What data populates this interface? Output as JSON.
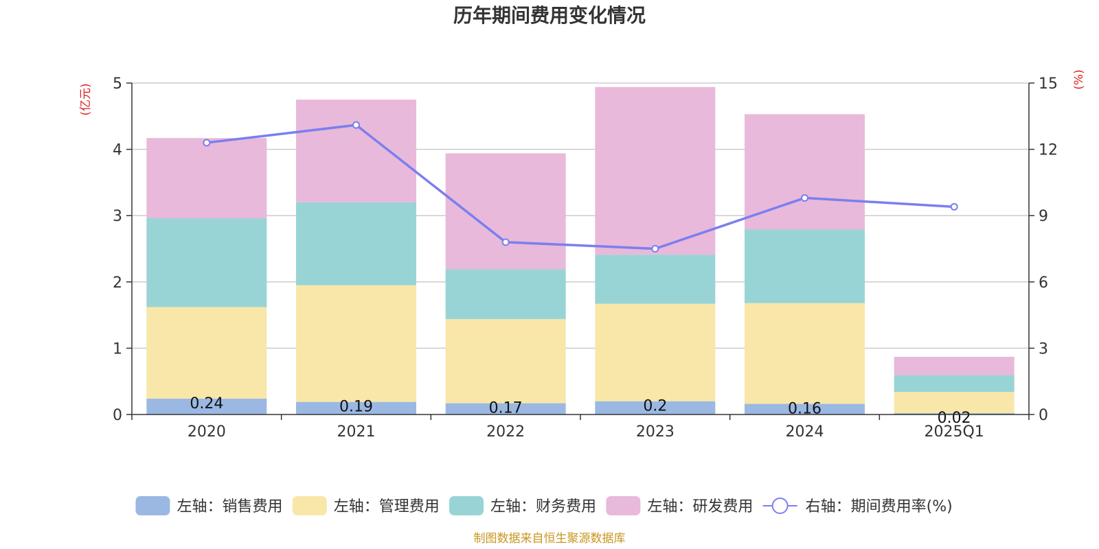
{
  "chart_data": {
    "type": "bar",
    "title": "历年期间费用变化情况",
    "categories": [
      "2020",
      "2021",
      "2022",
      "2023",
      "2024",
      "2025Q1"
    ],
    "left_axis": {
      "unit": "(亿元)",
      "ylim": [
        0,
        5
      ],
      "ticks": [
        "0",
        "1",
        "2",
        "3",
        "4",
        "5"
      ]
    },
    "right_axis": {
      "unit": "(%)",
      "ylim": [
        0,
        15
      ],
      "ticks": [
        "0",
        "3",
        "6",
        "9",
        "12",
        "15"
      ]
    },
    "series": [
      {
        "name": "左轴：销售费用",
        "type": "bar",
        "axis": "left",
        "color": "#9bb8e3",
        "values": [
          0.24,
          0.19,
          0.17,
          0.2,
          0.16,
          0.02
        ],
        "labels": [
          "0.24",
          "0.19",
          "0.17",
          "0.2",
          "0.16",
          "0.02"
        ]
      },
      {
        "name": "左轴：管理费用",
        "type": "bar",
        "axis": "left",
        "color": "#f8e7a8",
        "values": [
          1.38,
          1.76,
          1.27,
          1.47,
          1.52,
          0.32
        ]
      },
      {
        "name": "左轴：财务费用",
        "type": "bar",
        "axis": "left",
        "color": "#98d4d5",
        "values": [
          1.34,
          1.25,
          0.75,
          0.74,
          1.11,
          0.25
        ]
      },
      {
        "name": "左轴：研发费用",
        "type": "bar",
        "axis": "left",
        "color": "#e8b9da",
        "values": [
          1.21,
          1.55,
          1.75,
          2.53,
          1.74,
          0.28
        ]
      },
      {
        "name": "右轴：期间费用率(%)",
        "type": "line",
        "axis": "right",
        "color": "#7b7ef0",
        "values": [
          12.3,
          13.1,
          7.8,
          7.5,
          9.8,
          9.4
        ]
      }
    ],
    "grid": true,
    "legend_position": "bottom"
  },
  "source": "制图数据来自恒生聚源数据库"
}
